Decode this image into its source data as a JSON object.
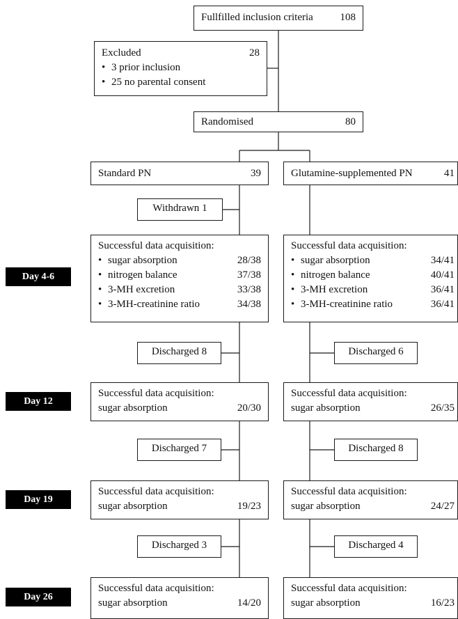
{
  "inclusion": {
    "label": "Fullfilled inclusion criteria",
    "count": "108"
  },
  "excluded": {
    "label": "Excluded",
    "count": "28",
    "reasons": [
      "3 prior inclusion",
      "25 no parental consent"
    ]
  },
  "randomised": {
    "label": "Randomised",
    "count": "80"
  },
  "arms": {
    "standard": {
      "label": "Standard PN",
      "count": "39"
    },
    "glutamine": {
      "label": "Glutamine-supplemented PN",
      "count": "41"
    }
  },
  "withdrawn": {
    "label": "Withdrawn",
    "count": "1"
  },
  "days": [
    "Day 4-6",
    "Day 12",
    "Day 19",
    "Day 26"
  ],
  "acquisition_heading": "Successful data acquisition:",
  "day4": {
    "items": [
      "sugar absorption",
      "nitrogen balance",
      "3-MH excretion",
      "3-MH-creatinine ratio"
    ],
    "standard": [
      "28/38",
      "37/38",
      "33/38",
      "34/38"
    ],
    "glutamine": [
      "34/41",
      "40/41",
      "36/41",
      "36/41"
    ]
  },
  "later": {
    "item": "sugar absorption",
    "standard": [
      "20/30",
      "19/23",
      "14/20"
    ],
    "glutamine": [
      "26/35",
      "24/27",
      "16/23"
    ]
  },
  "discharged": {
    "label": "Discharged",
    "standard": [
      "8",
      "7",
      "3"
    ],
    "glutamine": [
      "6",
      "8",
      "4"
    ]
  }
}
